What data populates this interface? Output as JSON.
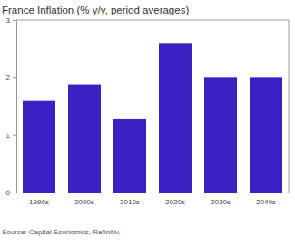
{
  "chart_data": {
    "type": "bar",
    "title": "France Inflation (% y/y, period averages)",
    "source": "Source: Capital Economics, Refinitiv.",
    "categories": [
      "1990s",
      "2000s",
      "2010s",
      "2020s",
      "2030s",
      "2040s"
    ],
    "values": [
      1.6,
      1.87,
      1.28,
      2.6,
      2.0,
      2.0
    ],
    "color": "#3b21c2",
    "ylim": [
      0,
      3
    ],
    "yticks": [
      0,
      1,
      2,
      3
    ],
    "grid": false
  }
}
